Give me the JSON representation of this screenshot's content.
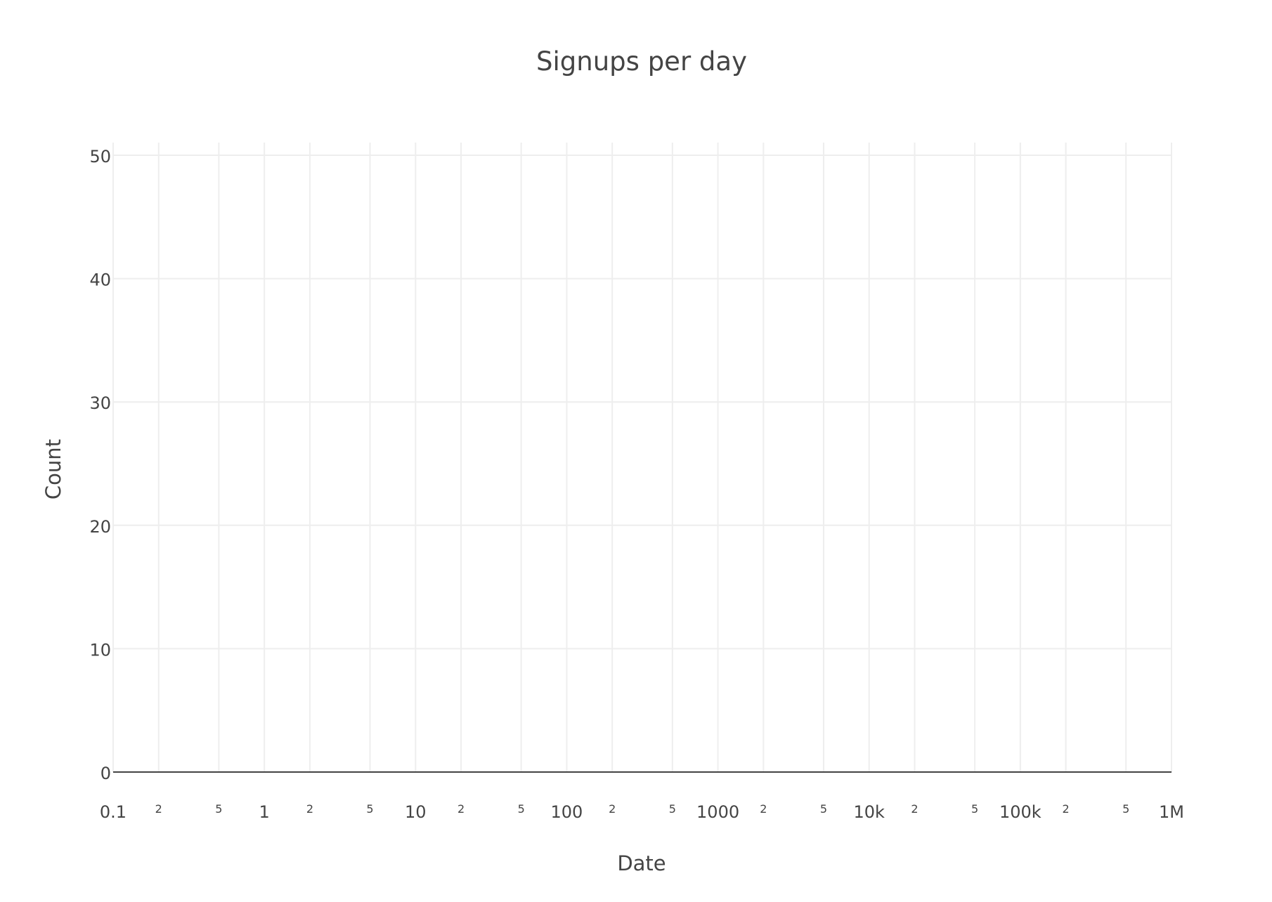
{
  "chart_data": {
    "type": "line",
    "title": "Signups per day",
    "xlabel": "Date",
    "ylabel": "Count",
    "x_scale": "log",
    "xlim": [
      0.1,
      1000000
    ],
    "ylim": [
      0,
      50
    ],
    "grid": true,
    "series": [],
    "x_major_ticks": [
      {
        "value": 0.1,
        "label": "0.1"
      },
      {
        "value": 1,
        "label": "1"
      },
      {
        "value": 10,
        "label": "10"
      },
      {
        "value": 100,
        "label": "100"
      },
      {
        "value": 1000,
        "label": "1000"
      },
      {
        "value": 10000,
        "label": "10k"
      },
      {
        "value": 100000,
        "label": "100k"
      },
      {
        "value": 1000000,
        "label": "1M"
      }
    ],
    "x_minor_ticks": [
      {
        "value": 0.2,
        "label": "2"
      },
      {
        "value": 0.5,
        "label": "5"
      },
      {
        "value": 2,
        "label": "2"
      },
      {
        "value": 5,
        "label": "5"
      },
      {
        "value": 20,
        "label": "2"
      },
      {
        "value": 50,
        "label": "5"
      },
      {
        "value": 200,
        "label": "2"
      },
      {
        "value": 500,
        "label": "5"
      },
      {
        "value": 2000,
        "label": "2"
      },
      {
        "value": 5000,
        "label": "5"
      },
      {
        "value": 20000,
        "label": "2"
      },
      {
        "value": 50000,
        "label": "5"
      },
      {
        "value": 200000,
        "label": "2"
      },
      {
        "value": 500000,
        "label": "5"
      }
    ],
    "y_ticks": [
      {
        "value": 0,
        "label": "0"
      },
      {
        "value": 10,
        "label": "10"
      },
      {
        "value": 20,
        "label": "20"
      },
      {
        "value": 30,
        "label": "30"
      },
      {
        "value": 40,
        "label": "40"
      },
      {
        "value": 50,
        "label": "50"
      }
    ],
    "colors": {
      "text": "#444444",
      "grid": "#eeeeee",
      "zero_line": "#444444",
      "background": "#ffffff"
    }
  }
}
